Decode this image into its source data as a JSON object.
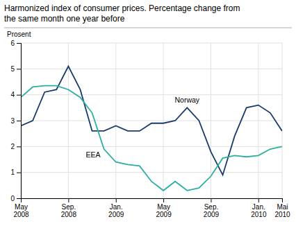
{
  "chart_data": {
    "type": "line",
    "title": "Harmonized index of consumer prices. Percentage change from\nthe same month one year before",
    "ylabel": "Prosent",
    "categories": [
      "May\n2008",
      null,
      null,
      null,
      "Sep.\n2008",
      null,
      null,
      null,
      "Jan.\n2009",
      null,
      null,
      null,
      "May\n2009",
      null,
      null,
      null,
      "Sep.\n2009",
      null,
      null,
      null,
      "Jan.\n2010",
      null,
      "Mai\n2010"
    ],
    "series": [
      {
        "name": "Norway",
        "color": "#1a3a6b",
        "values": [
          2.8,
          3.0,
          4.1,
          4.2,
          5.1,
          4.2,
          2.6,
          2.6,
          2.8,
          2.6,
          2.6,
          2.9,
          2.9,
          3.0,
          3.5,
          3.0,
          1.8,
          0.9,
          2.4,
          3.5,
          3.6,
          3.3,
          2.6
        ]
      },
      {
        "name": "EEA",
        "color": "#2aafa0",
        "values": [
          3.9,
          4.3,
          4.35,
          4.35,
          4.2,
          3.9,
          3.3,
          1.9,
          1.4,
          1.3,
          1.25,
          0.65,
          0.3,
          0.65,
          0.3,
          0.4,
          0.85,
          1.55,
          1.65,
          1.6,
          1.65,
          1.9,
          2.0
        ]
      }
    ],
    "ylim": [
      0,
      6
    ],
    "yticks": [
      0,
      1,
      2,
      3,
      4,
      5,
      6
    ],
    "grid": true
  }
}
